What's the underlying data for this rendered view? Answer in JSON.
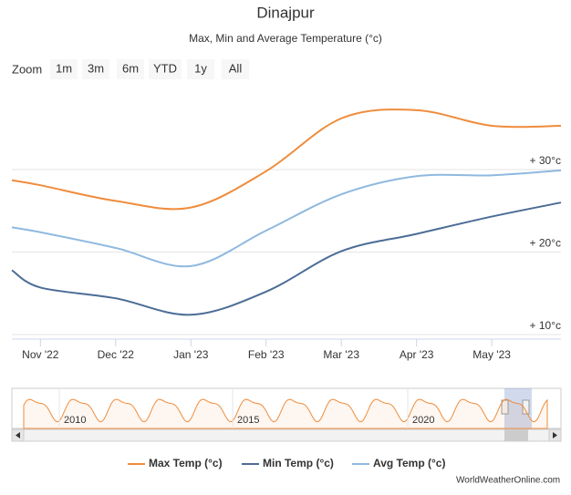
{
  "chart_data": {
    "type": "line",
    "title": "Dinajpur",
    "subtitle": "Max, Min and Average Temperature (°c)",
    "range_selector": {
      "label": "Zoom",
      "buttons": [
        "1m",
        "3m",
        "6m",
        "YTD",
        "1y",
        "All"
      ]
    },
    "x": [
      -0.38,
      0,
      1,
      2,
      3,
      4,
      5,
      6,
      6.92
    ],
    "xlim": [
      -0.38,
      6.92
    ],
    "xticks": [
      {
        "value": 0,
        "label": "Nov '22"
      },
      {
        "value": 1,
        "label": "Dec '22"
      },
      {
        "value": 2,
        "label": "Jan '23"
      },
      {
        "value": 3,
        "label": "Feb '23"
      },
      {
        "value": 4,
        "label": "Mar '23"
      },
      {
        "value": 5,
        "label": "Apr '23"
      },
      {
        "value": 6,
        "label": "May '23"
      }
    ],
    "ylim": [
      9.45,
      39.5
    ],
    "yticks": [
      {
        "value": 10,
        "label": "+ 10°c"
      },
      {
        "value": 20,
        "label": "+ 20°c"
      },
      {
        "value": 30,
        "label": "+ 30°c"
      }
    ],
    "grid": true,
    "series": [
      {
        "name": "Max Temp (°c)",
        "color": "#ef8c3c",
        "values": [
          28.7,
          28.1,
          26.2,
          25.4,
          29.8,
          36.2,
          37.2,
          35.3,
          35.3
        ]
      },
      {
        "name": "Min Temp (°c)",
        "color": "#4b6d96",
        "values": [
          17.8,
          15.7,
          14.4,
          12.4,
          15.2,
          20.1,
          22.2,
          24.3,
          26.0
        ]
      },
      {
        "name": "Avg Temp (°c)",
        "color": "#8fb9e0",
        "values": [
          23.0,
          22.4,
          20.5,
          18.3,
          22.6,
          27.0,
          29.2,
          29.3,
          29.9
        ]
      }
    ],
    "navigator": {
      "labels": [
        "2010",
        "2015",
        "2020"
      ]
    },
    "credit": "WorldWeatherOnline.com"
  }
}
